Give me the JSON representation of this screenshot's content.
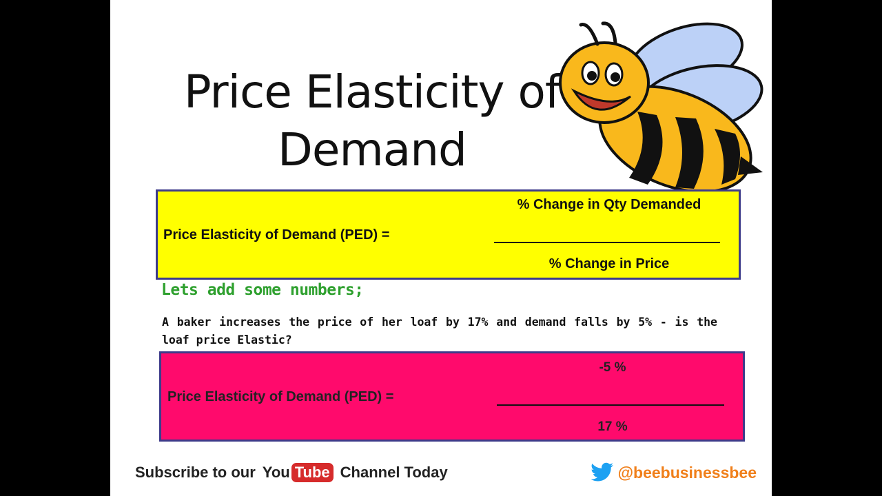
{
  "slide": {
    "title_line1": "Price Elasticity of",
    "title_line2": "Demand",
    "bee_image": "bee-mascot"
  },
  "formula_general": {
    "label": "Price Elasticity of Demand (PED) =",
    "numerator": "% Change in Qty Demanded",
    "denominator": "% Change in Price",
    "background": "#ffff00"
  },
  "example": {
    "heading": "Lets add some numbers;",
    "question": "A baker increases the price of her loaf by 17% and demand falls by 5% - is the loaf price Elastic?"
  },
  "formula_example": {
    "label": "Price Elasticity of Demand (PED) =",
    "numerator": "-5 %",
    "denominator": "17 %",
    "background": "#ff0a6c"
  },
  "footer": {
    "subscribe_prefix": "Subscribe to our",
    "youtube_you": "You",
    "youtube_tube": "Tube",
    "subscribe_suffix": "Channel Today",
    "twitter_icon": "twitter-bird-icon",
    "twitter_handle": "@beebusinessbee"
  },
  "colors": {
    "border": "#3d3b8a",
    "heading_green": "#2ea02e",
    "twitter_blue": "#1da1f2",
    "handle_orange": "#f07f1a",
    "youtube_red": "#d62b2b"
  }
}
